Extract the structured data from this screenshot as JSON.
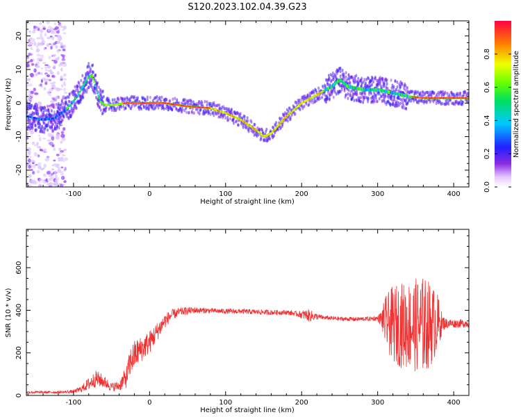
{
  "figure_title": "S120.2023.102.04.39.G23",
  "colors": {
    "snr_line": "#f03030",
    "axes": "#000000"
  },
  "chart_data": [
    {
      "type": "heatmap",
      "xlabel": "Height of straight line (km)",
      "ylabel": "Frequency (Hz)",
      "xlim": [
        -162,
        420
      ],
      "ylim": [
        -25,
        24.5
      ],
      "x_ticks": [
        -100,
        0,
        100,
        200,
        300,
        400
      ],
      "x_tick_labels": [
        "-100",
        "0",
        "100",
        "200",
        "300",
        "400"
      ],
      "y_ticks": [
        -20,
        -10,
        0,
        10,
        20
      ],
      "y_tick_labels": [
        "-20",
        "-10",
        "0",
        "10",
        "20"
      ],
      "colormap": "rainbow (white-violet-blue-cyan-green-yellow-red)",
      "colorbar": {
        "label": "Normalized spectral amplitude",
        "range": [
          0,
          1
        ],
        "ticks": [
          0.0,
          0.2,
          0.4,
          0.6,
          0.8
        ],
        "tick_labels": [
          "0.0",
          "0.2",
          "0.4",
          "0.6",
          "0.8"
        ]
      },
      "ridge": {
        "x": [
          -160,
          -140,
          -125,
          -110,
          -95,
          -85,
          -80,
          -75,
          -70,
          -65,
          -60,
          -45,
          -30,
          -10,
          20,
          50,
          80,
          100,
          120,
          140,
          150,
          160,
          180,
          200,
          220,
          240,
          250,
          260,
          280,
          300,
          320,
          340,
          360,
          380,
          400,
          420
        ],
        "y": [
          -4,
          -5,
          -4.5,
          -2,
          2,
          6,
          8,
          8,
          4,
          0.5,
          -0.5,
          -0.5,
          0,
          0,
          0,
          -1,
          -1.5,
          -3,
          -5,
          -8,
          -10,
          -9,
          -4,
          0,
          2.5,
          5,
          7,
          5,
          4,
          4,
          3,
          2,
          1.5,
          1.5,
          1.5,
          1.5
        ]
      }
    },
    {
      "type": "line",
      "xlabel": "Height of straight line (km)",
      "ylabel": "SNR (10 * v/v)",
      "xlim": [
        -162,
        420
      ],
      "ylim": [
        0,
        780
      ],
      "x_ticks": [
        -100,
        0,
        100,
        200,
        300,
        400
      ],
      "x_tick_labels": [
        "-100",
        "0",
        "100",
        "200",
        "300",
        "400"
      ],
      "y_ticks": [
        0,
        200,
        400,
        600
      ],
      "y_tick_labels": [
        "0",
        "200",
        "400",
        "600"
      ],
      "series": [
        {
          "x": [
            -162,
            -140,
            -120,
            -100,
            -90,
            -80,
            -70,
            -60,
            -50,
            -40,
            -30,
            -25,
            -20,
            -10,
            0,
            10,
            20,
            30,
            40,
            50,
            60,
            80,
            100,
            120,
            140,
            160,
            180,
            195,
            200,
            210,
            220,
            230,
            250,
            270,
            290,
            300,
            305,
            310,
            320,
            330,
            340,
            350,
            360,
            370,
            380,
            385,
            390,
            400,
            420
          ],
          "y_center": [
            15,
            15,
            15,
            18,
            30,
            55,
            80,
            65,
            40,
            45,
            90,
            160,
            190,
            220,
            250,
            300,
            350,
            380,
            392,
            398,
            400,
            398,
            395,
            395,
            392,
            390,
            390,
            382,
            380,
            375,
            370,
            365,
            360,
            358,
            360,
            362,
            360,
            345,
            335,
            330,
            330,
            330,
            330,
            335,
            340,
            340,
            338,
            338,
            338
          ],
          "y_noise": [
            6,
            6,
            6,
            8,
            15,
            30,
            40,
            30,
            20,
            25,
            55,
            70,
            70,
            60,
            55,
            45,
            35,
            25,
            20,
            18,
            15,
            12,
            12,
            12,
            12,
            12,
            12,
            12,
            20,
            30,
            15,
            10,
            10,
            10,
            10,
            12,
            40,
            120,
            180,
            200,
            210,
            220,
            230,
            200,
            130,
            40,
            25,
            20,
            20
          ]
        }
      ]
    }
  ]
}
